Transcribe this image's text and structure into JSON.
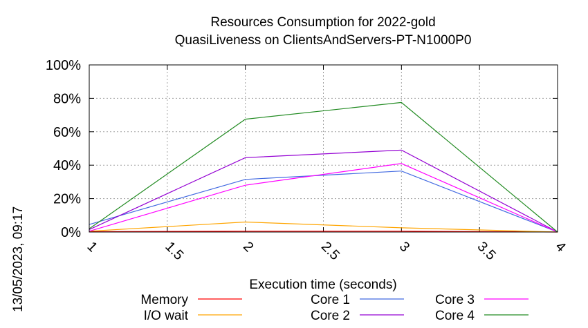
{
  "chart_data": {
    "type": "line",
    "title": [
      "Resources Consumption for 2022-gold",
      "QuasiLiveness on ClientsAndServers-PT-N1000P0"
    ],
    "xlabel": "Execution time (seconds)",
    "ylabel": "",
    "xlim": [
      1,
      4
    ],
    "ylim": [
      0,
      100
    ],
    "x_ticks": [
      1,
      1.5,
      2,
      2.5,
      3,
      3.5,
      4
    ],
    "x_tick_labels": [
      "1",
      "1.5",
      "2",
      "2.5",
      "3",
      "3.5",
      "4"
    ],
    "y_ticks": [
      0,
      20,
      40,
      60,
      80,
      100
    ],
    "y_tick_labels": [
      "0%",
      "20%",
      "40%",
      "60%",
      "80%",
      "100%"
    ],
    "grid": true,
    "legend_position": "bottom",
    "x": [
      1,
      2,
      3,
      4
    ],
    "series": [
      {
        "name": "Memory",
        "color": "#ff0000",
        "values": [
          0.2,
          0.5,
          0.5,
          0
        ]
      },
      {
        "name": "I/O wait",
        "color": "#ffa500",
        "values": [
          0.5,
          6,
          2.5,
          0
        ]
      },
      {
        "name": "Core 1",
        "color": "#4169e1",
        "values": [
          4.5,
          31.5,
          36.5,
          0
        ]
      },
      {
        "name": "Core 2",
        "color": "#9400d3",
        "values": [
          1.5,
          44.5,
          49,
          0
        ]
      },
      {
        "name": "Core 3",
        "color": "#ff00ff",
        "values": [
          0.5,
          28,
          41,
          0
        ]
      },
      {
        "name": "Core 4",
        "color": "#228b22",
        "values": [
          2,
          67.5,
          77.5,
          0
        ]
      }
    ]
  },
  "timestamp": "13/05/2023, 09:17"
}
